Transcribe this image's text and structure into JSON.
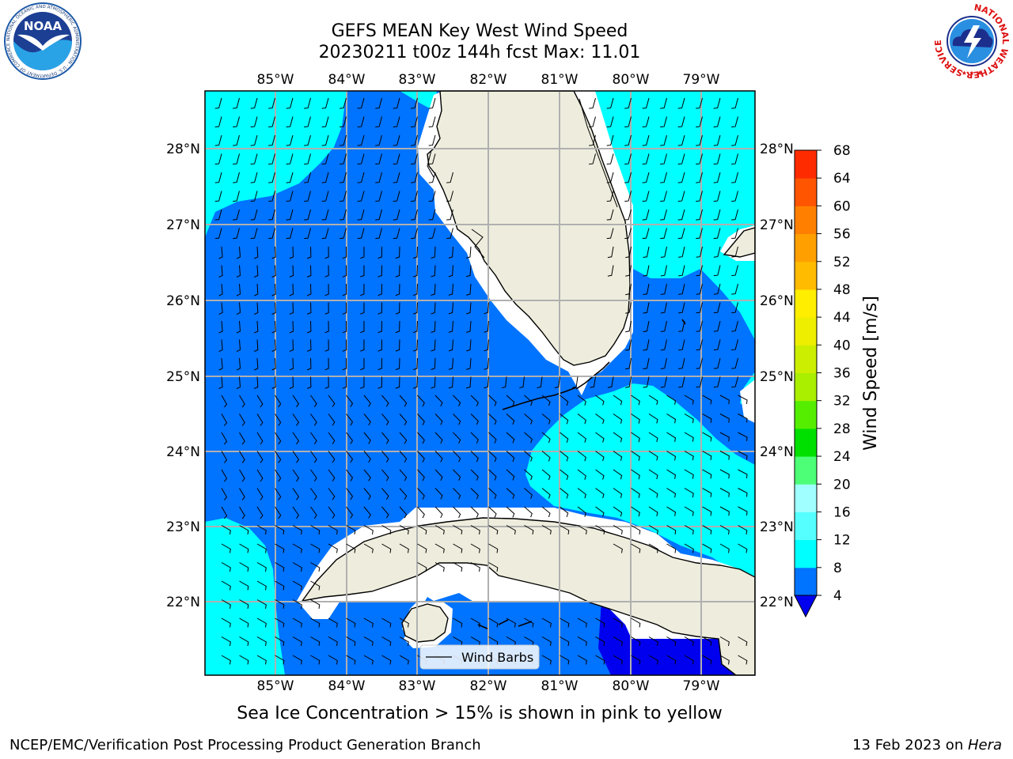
{
  "title": {
    "line1": "GEFS MEAN Key West Wind Speed",
    "line2": "20230211 t00z 144h fcst   Max: 11.01"
  },
  "logos": {
    "noaa_text": "NOAA",
    "noaa_ring_text": "NATIONAL OCEANIC AND ATMOSPHERIC ADMINISTRATION · U.S. DEPARTMENT OF COMMERCE",
    "nws_ring_text": "NATIONAL WEATHER SERVICE"
  },
  "map": {
    "extent": {
      "lon": [
        -86.0,
        -78.25
      ],
      "lat": [
        21.0,
        28.75
      ]
    },
    "lon_ticks": [
      "85°W",
      "84°W",
      "83°W",
      "82°W",
      "81°W",
      "80°W",
      "79°W"
    ],
    "lat_ticks": [
      "28°N",
      "27°N",
      "26°N",
      "25°N",
      "24°N",
      "23°N",
      "22°N"
    ],
    "legend_label": "Wind Barbs",
    "colors": {
      "land": "#eeeddd",
      "band_4_8": "#0073ff",
      "band_8_12": "#00ffff",
      "band_below_4": "#0000ee",
      "grid": "#b0b0b0",
      "coast": "#000000"
    }
  },
  "colorbar": {
    "label": "Wind Speed [m/s]",
    "levels": [
      4,
      8,
      12,
      16,
      20,
      24,
      28,
      32,
      36,
      40,
      44,
      48,
      52,
      56,
      60,
      64,
      68
    ],
    "tick_labels": [
      "68",
      "64",
      "60",
      "56",
      "52",
      "48",
      "44",
      "40",
      "36",
      "32",
      "28",
      "24",
      "20",
      "16",
      "12",
      "8",
      "4"
    ],
    "colors": [
      "#0073ff",
      "#00ffff",
      "#55ffff",
      "#a0ffff",
      "#4dff77",
      "#00e000",
      "#55ee00",
      "#aaee00",
      "#ccee00",
      "#eeee00",
      "#ffee00",
      "#ffbb00",
      "#ffa000",
      "#ff8000",
      "#ff5500",
      "#ff2b00"
    ],
    "extend_min_color": "#0000ee"
  },
  "caption": "Sea Ice Concentration > 15% is shown in pink to yellow",
  "footer": {
    "left": "NCEP/EMC/Verification Post Processing Product Generation Branch",
    "right_date": "13 Feb 2023 on ",
    "right_host": "Hera"
  }
}
